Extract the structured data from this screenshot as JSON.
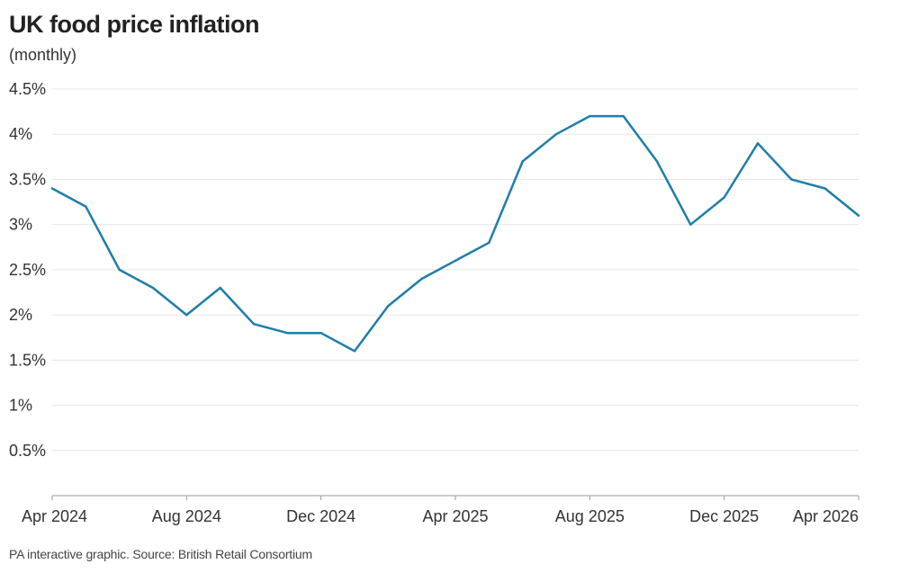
{
  "title": "UK food price inflation",
  "subtitle": "(monthly)",
  "source": "PA interactive graphic. Source: British Retail Consortium",
  "colors": {
    "line": "#1f7ea8",
    "grid": "#e6e6e6",
    "axis": "#999999"
  },
  "chart_data": {
    "type": "line",
    "title": "UK food price inflation",
    "subtitle": "(monthly)",
    "xlabel": "",
    "ylabel": "",
    "ylim": [
      0,
      4.5
    ],
    "yticks": [
      0.5,
      1,
      1.5,
      2,
      2.5,
      3,
      3.5,
      4,
      4.5
    ],
    "ytick_labels": [
      "0.5%",
      "1%",
      "1.5%",
      "2%",
      "2.5%",
      "3%",
      "3.5%",
      "4%",
      "4.5%"
    ],
    "xlim": [
      "2024-04",
      "2026-04"
    ],
    "xticks": [
      "2024-04",
      "2024-08",
      "2024-12",
      "2025-04",
      "2025-08",
      "2025-12",
      "2026-04"
    ],
    "xtick_labels": [
      "Apr 2024",
      "Aug 2024",
      "Dec 2024",
      "Apr 2025",
      "Aug 2025",
      "Dec 2025",
      "Apr 2026"
    ],
    "grid": true,
    "series": [
      {
        "x": [
          "2024-04",
          "2024-05",
          "2024-06",
          "2024-07",
          "2024-08",
          "2024-09",
          "2024-10",
          "2024-11",
          "2024-12",
          "2025-01",
          "2025-02",
          "2025-03",
          "2025-04",
          "2025-05",
          "2025-06",
          "2025-07",
          "2025-08",
          "2025-09",
          "2025-10",
          "2025-11",
          "2025-12",
          "2026-01",
          "2026-02",
          "2026-03",
          "2026-04"
        ],
        "values": [
          3.4,
          3.2,
          2.5,
          2.3,
          2.0,
          2.3,
          1.9,
          1.8,
          1.8,
          1.6,
          2.1,
          2.4,
          2.6,
          2.8,
          3.7,
          4.0,
          4.2,
          4.2,
          3.7,
          3.0,
          3.3,
          3.9,
          3.5,
          3.4,
          3.1
        ]
      }
    ]
  }
}
